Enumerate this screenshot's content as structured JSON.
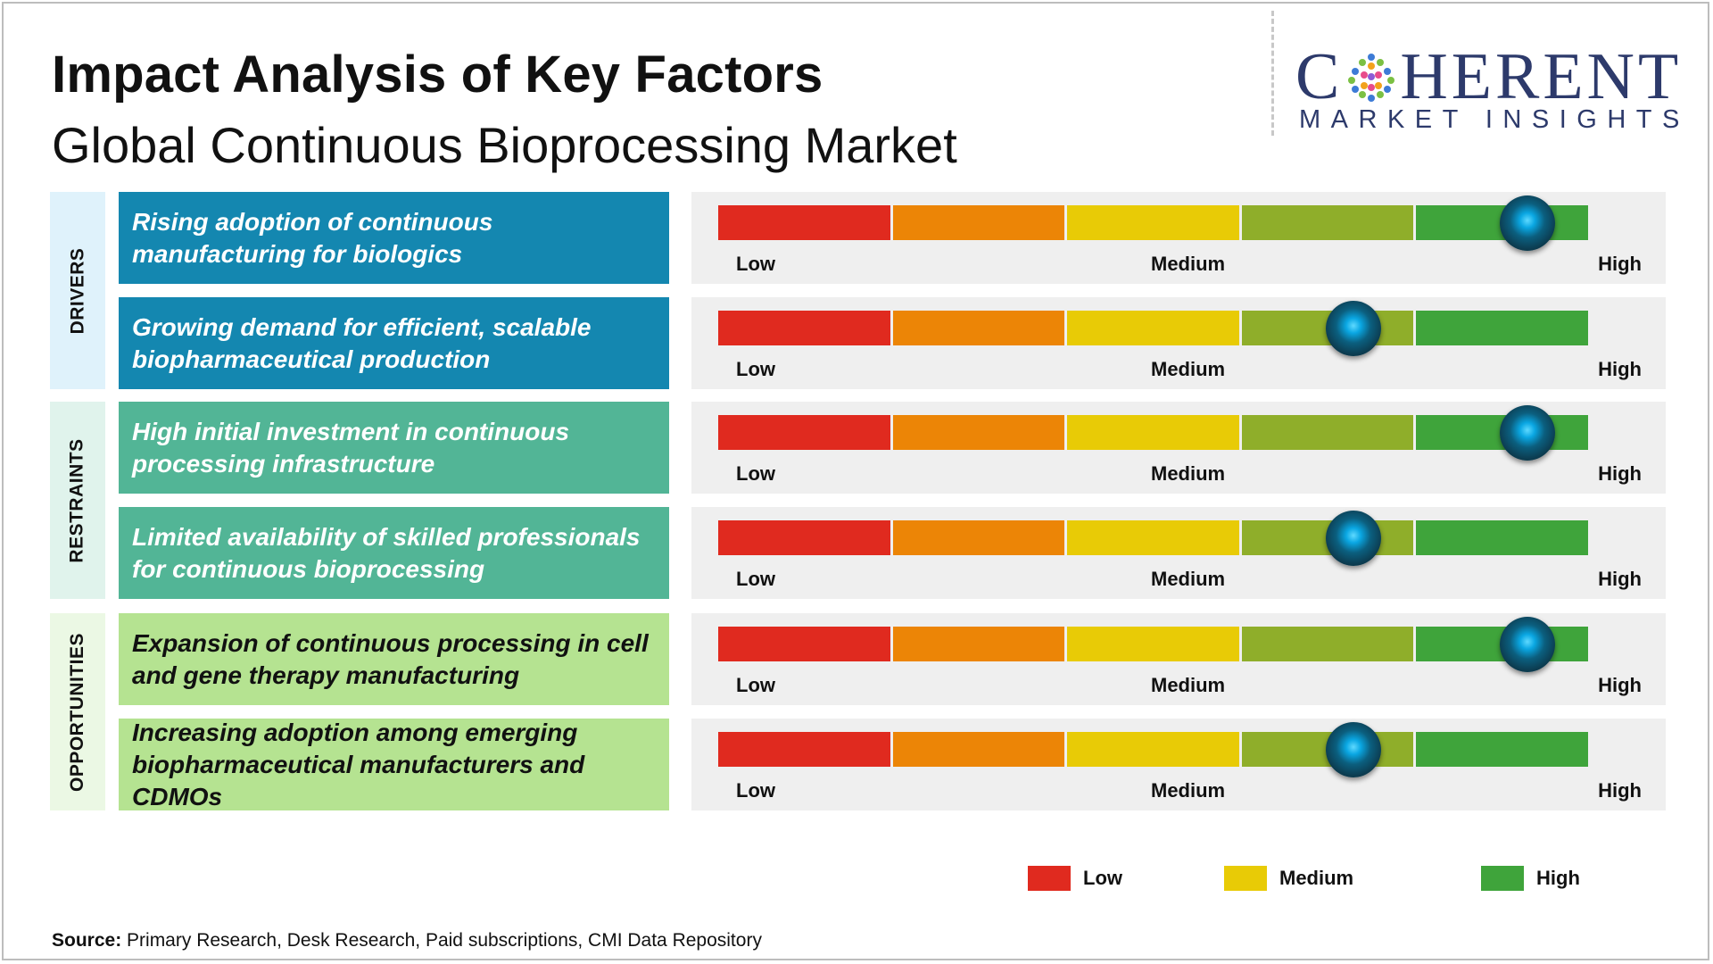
{
  "header": {
    "title": "Impact Analysis of Key Factors",
    "subtitle": "Global Continuous Bioprocessing Market"
  },
  "logo": {
    "main_left": "C",
    "main_right": "HERENT",
    "sub": "MARKET INSIGHTS"
  },
  "scale": {
    "low_label": "Low",
    "medium_label": "Medium",
    "high_label": "High",
    "segment_colors": [
      "#e02a1f",
      "#ec8506",
      "#e8cb06",
      "#8fae2a",
      "#3fa43b"
    ]
  },
  "categories": [
    {
      "name": "DRIVERS",
      "label_bg": "#dff2fb",
      "factor_bg": "#1487b0",
      "factors": [
        {
          "text": "Rising adoption of continuous manufacturing for biologics",
          "impact": 0.93
        },
        {
          "text": "Growing demand for efficient, scalable biopharmaceutical production",
          "impact": 0.73
        }
      ]
    },
    {
      "name": "RESTRAINTS",
      "label_bg": "#e0f3ec",
      "factor_bg": "#52b596",
      "factors": [
        {
          "text": "High initial investment in continuous processing infrastructure",
          "impact": 0.93
        },
        {
          "text": "Limited availability of skilled professionals for continuous bioprocessing",
          "impact": 0.73
        }
      ]
    },
    {
      "name": "OPPORTUNITIES",
      "label_bg": "#ebf8e4",
      "factor_bg": "#b5e391",
      "factors": [
        {
          "text": "Expansion of continuous processing in cell and gene therapy manufacturing",
          "impact": 0.93
        },
        {
          "text": "Increasing adoption among emerging biopharmaceutical manufacturers and CDMOs",
          "impact": 0.73
        }
      ]
    }
  ],
  "legend": [
    {
      "label": "Low",
      "color": "#e02a1f"
    },
    {
      "label": "Medium",
      "color": "#e8cb06"
    },
    {
      "label": "High",
      "color": "#3fa43b"
    }
  ],
  "source": {
    "label": "Source:",
    "text": " Primary Research, Desk Research, Paid subscriptions, CMI Data Repository"
  }
}
